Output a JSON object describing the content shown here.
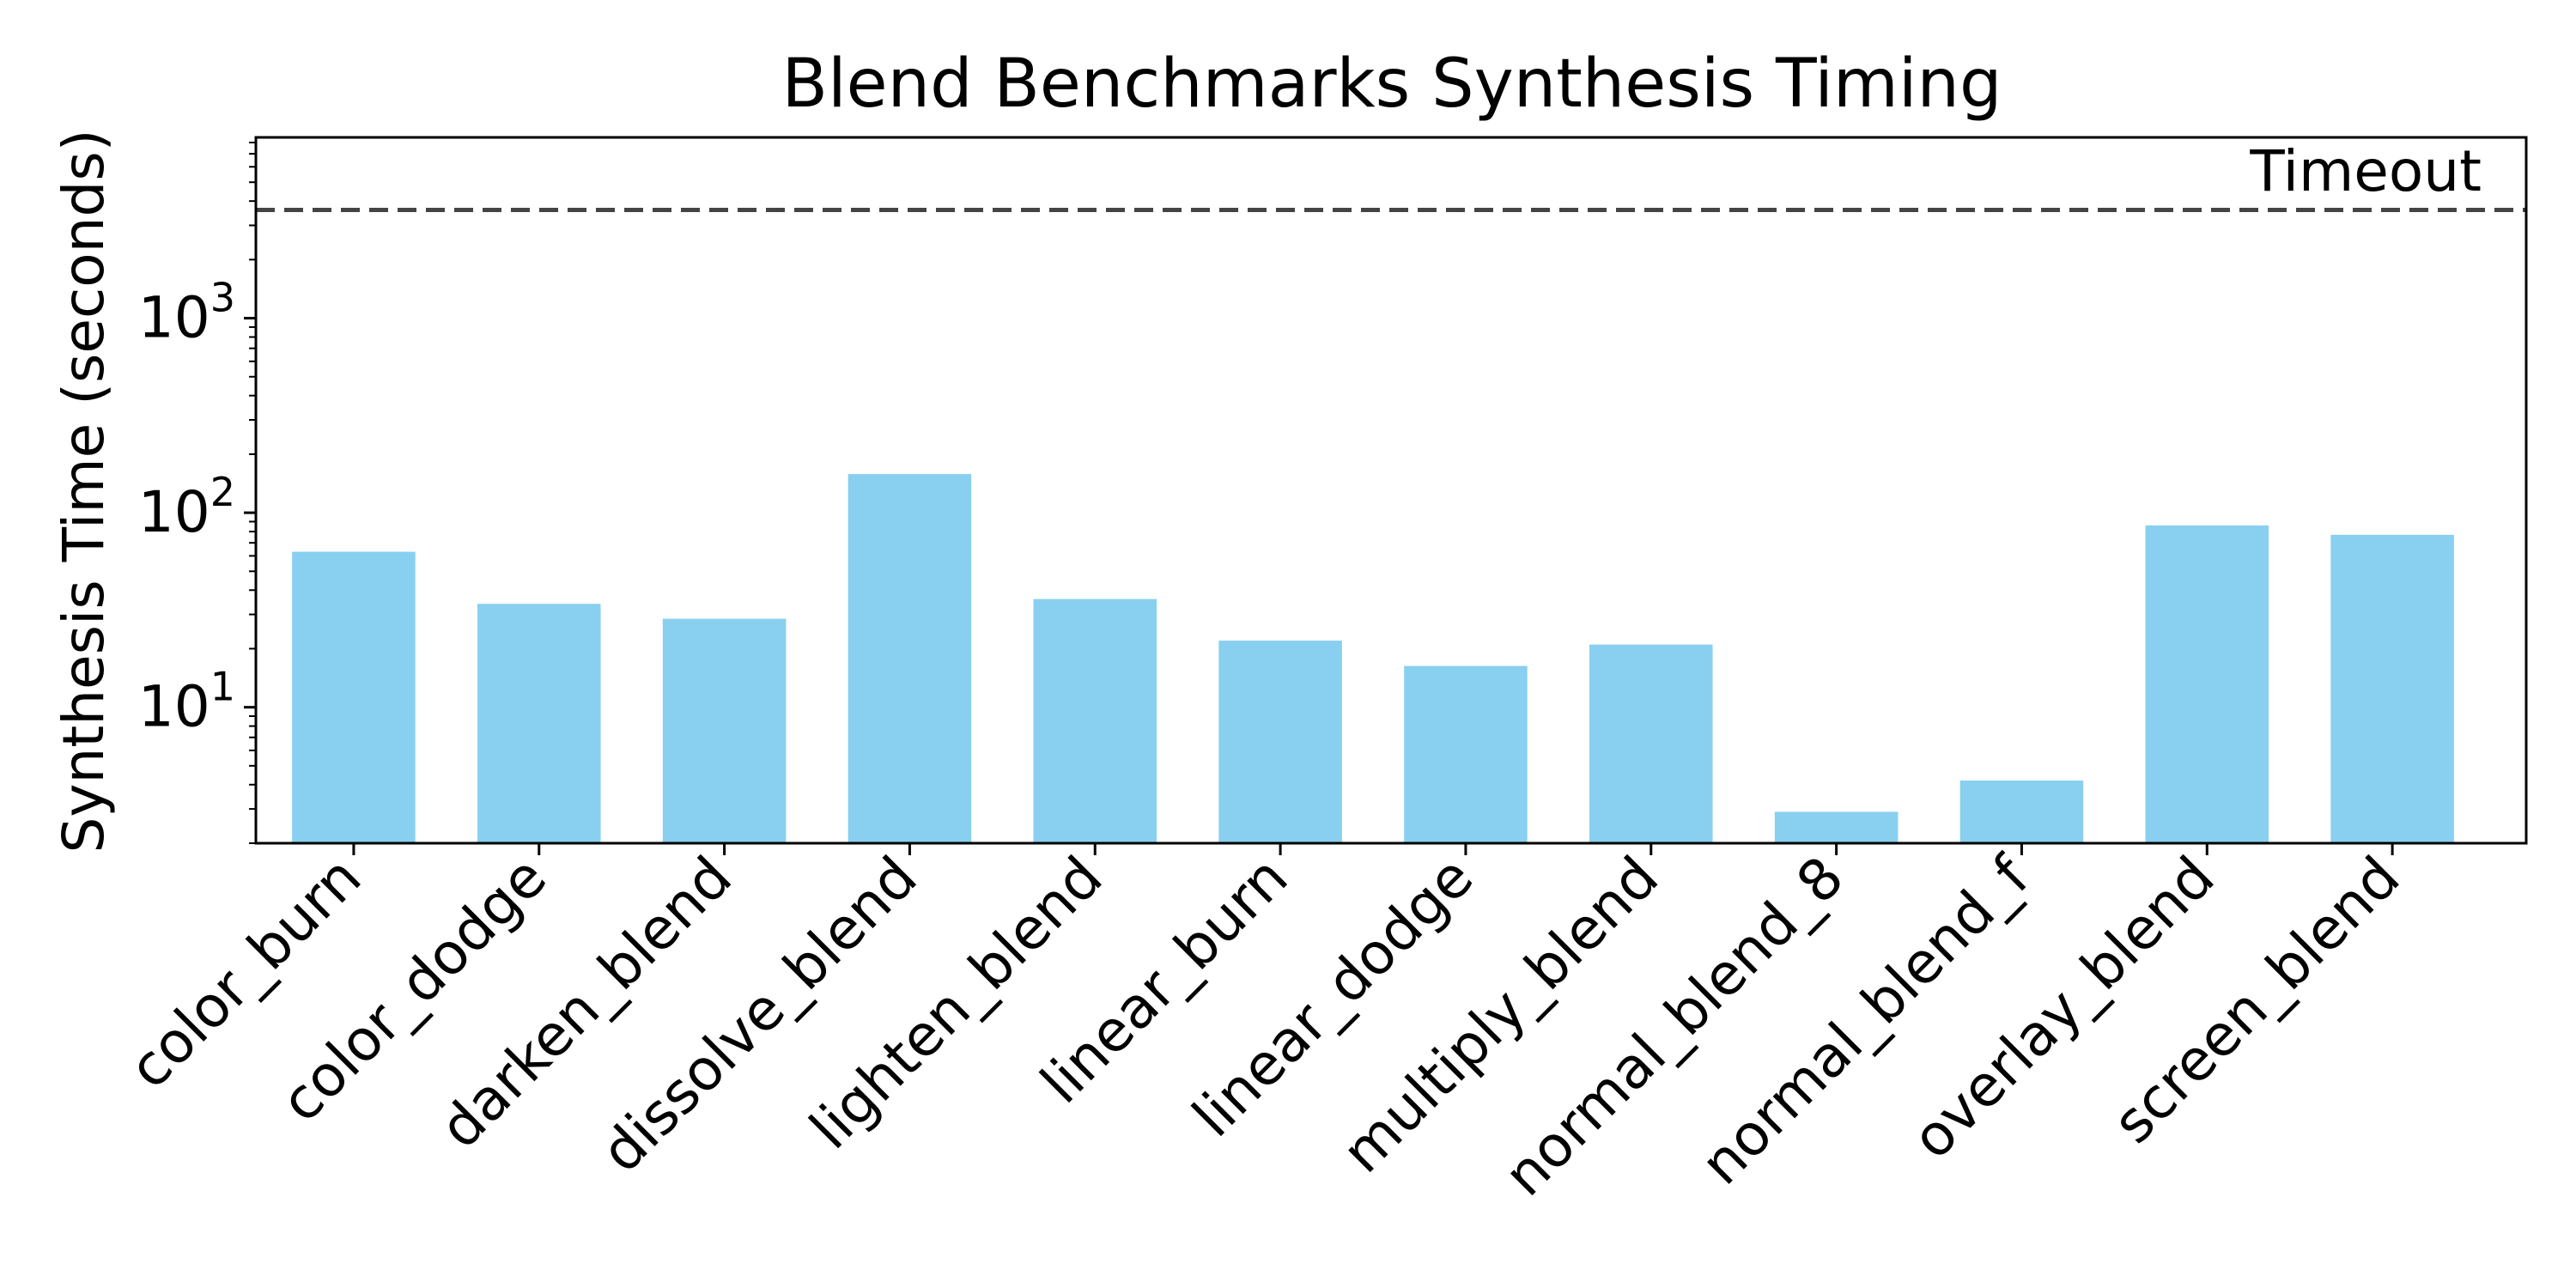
{
  "chart_data": {
    "type": "bar",
    "title": "Blend Benchmarks Synthesis Timing",
    "xlabel": "",
    "ylabel": "Synthesis Time (seconds)",
    "yscale": "log",
    "ylim": [
      2.0,
      8500
    ],
    "yticks": [
      {
        "value": 10,
        "base": "10",
        "exp": "1"
      },
      {
        "value": 100,
        "base": "10",
        "exp": "2"
      },
      {
        "value": 1000,
        "base": "10",
        "exp": "3"
      }
    ],
    "categories": [
      "color_burn",
      "color_dodge",
      "darken_blend",
      "dissolve_blend",
      "lighten_blend",
      "linear_burn",
      "linear_dodge",
      "multiply_blend",
      "normal_blend_8",
      "normal_blend_f",
      "overlay_blend",
      "screen_blend"
    ],
    "values": [
      63,
      34,
      28.5,
      158,
      36,
      22,
      16.3,
      21,
      2.9,
      4.2,
      86,
      77
    ],
    "bar_color": "#89CFF0",
    "grid": false,
    "legend": "none",
    "reference_line": {
      "label": "Timeout",
      "value": 3600,
      "style": "dashed",
      "color": "#444444"
    }
  }
}
